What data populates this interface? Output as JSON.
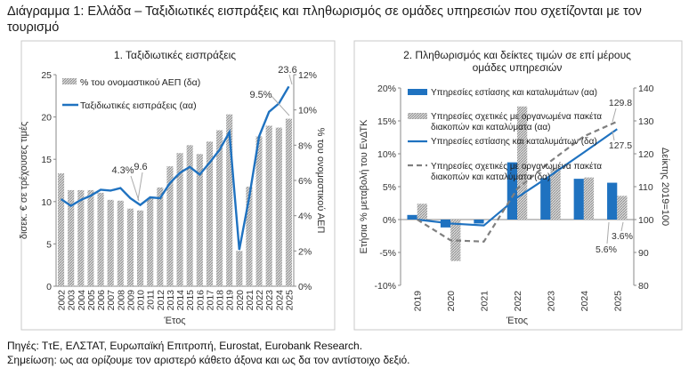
{
  "title": "Διάγραμμα 1: Ελλάδα – Ταξιδιωτικές εισπράξεις και πληθωρισμός σε ομάδες υπηρεσιών που σχετίζονται με τον τουρισμό",
  "source": "Πηγές: ΤτΕ, ΕΛΣΤΑΤ, Ευρωπαϊκή Επιτροπή, Eurostat, Eurobank Research.",
  "note": "Σημείωση: ως αα ορίζουμε τον αριστερό κάθετο άξονα και ως δα τον αντίστοιχο δεξιό.",
  "colors": {
    "blue": "#1f72c0",
    "gray": "#9a9a9a",
    "dash": "#7f7f7f"
  },
  "chart_data": [
    {
      "type": "bar+line",
      "title": "1. Ταξιδιωτικές εισπράξεις",
      "xlabel": "Έτος",
      "ylabel": "δισεκ. € σε τρέχουσες τιμές",
      "y2label": "% του ονομαστικού ΑΕΠ",
      "ylim": [
        0,
        25
      ],
      "y2lim": [
        0,
        12
      ],
      "yticks": [
        "0",
        "5",
        "10",
        "15",
        "20",
        "25"
      ],
      "y2ticks": [
        "0%",
        "2%",
        "4%",
        "6%",
        "8%",
        "10%",
        "12%"
      ],
      "categories": [
        "2002",
        "2003",
        "2004",
        "2005",
        "2006",
        "2007",
        "2008",
        "2009",
        "2010",
        "2011",
        "2012",
        "2013",
        "2014",
        "2015",
        "2016",
        "2017",
        "2018",
        "2019",
        "2020",
        "2021",
        "2022",
        "2023",
        "2024",
        "2025"
      ],
      "series": [
        {
          "name": "% του ονομαστικού ΑΕΠ (δα)",
          "type": "bar",
          "axis": "right",
          "values": [
            6.4,
            5.45,
            5.45,
            5.45,
            5.3,
            4.9,
            4.85,
            4.4,
            4.3,
            5.0,
            5.6,
            6.8,
            7.55,
            8.0,
            7.5,
            8.2,
            8.85,
            9.75,
            2.0,
            5.65,
            8.5,
            9.1,
            9.0,
            9.5
          ]
        },
        {
          "name": "Ταξιδιωτικές εισπράξεις (αα)",
          "type": "line",
          "axis": "left",
          "values": [
            10.3,
            9.5,
            10.2,
            10.7,
            11.4,
            11.3,
            11.6,
            10.4,
            9.6,
            10.5,
            10.4,
            12.2,
            13.4,
            14.1,
            13.2,
            14.6,
            16.1,
            18.2,
            4.3,
            10.5,
            17.7,
            20.6,
            21.6,
            23.6
          ]
        }
      ],
      "annotations": [
        "4.3%",
        "9.6",
        "9.5%",
        "23.6"
      ],
      "legend": "top-left"
    },
    {
      "type": "bar+line",
      "title": "2. Πληθωρισμός και δείκτες τιμών σε επί μέρους ομάδες υπηρεσιών",
      "xlabel": "Έτος",
      "ylabel": "Ετήσια % μεταβολή του ΕνΔΤΚ",
      "y2label": "Δείκτης 2019=100",
      "ylim": [
        -10,
        20
      ],
      "y2lim": [
        80,
        140
      ],
      "yticks": [
        "-10%",
        "-5%",
        "0%",
        "5%",
        "10%",
        "15%",
        "20%"
      ],
      "y2ticks": [
        "80",
        "90",
        "100",
        "110",
        "120",
        "130",
        "140"
      ],
      "categories": [
        "2019",
        "2020",
        "2021",
        "2022",
        "2023",
        "2024",
        "2025"
      ],
      "series": [
        {
          "name": "Υπηρεσίες εστίασης και καταλυμάτων (αα)",
          "type": "bar",
          "axis": "left",
          "values": [
            0.7,
            -1.2,
            -0.6,
            8.7,
            6.3,
            6.2,
            5.6
          ]
        },
        {
          "name": "Υπηρεσίες σχετικές με οργανωμένα πακέτα διακοπών και καταλύματα (αα)",
          "type": "bar",
          "axis": "left",
          "values": [
            2.4,
            -6.3,
            0.0,
            17.2,
            7.7,
            6.4,
            3.6
          ]
        },
        {
          "name": "Υπηρεσίες εστίασης και καταλυμάτων (δα)",
          "type": "line",
          "axis": "right",
          "values": [
            100,
            98.8,
            98.2,
            106.7,
            113.4,
            120.4,
            127.5
          ]
        },
        {
          "name": "Υπηρεσίες σχετικές με οργανωμένα πακέτα διακοπών και καταλύματα (δα)",
          "type": "dashed-line",
          "axis": "right",
          "values": [
            100,
            93.7,
            93.3,
            109.3,
            117.7,
            125.3,
            129.8
          ]
        }
      ],
      "annotations": [
        "129.8",
        "127.5",
        "5.6%",
        "3.6%"
      ],
      "legend": "top"
    }
  ]
}
